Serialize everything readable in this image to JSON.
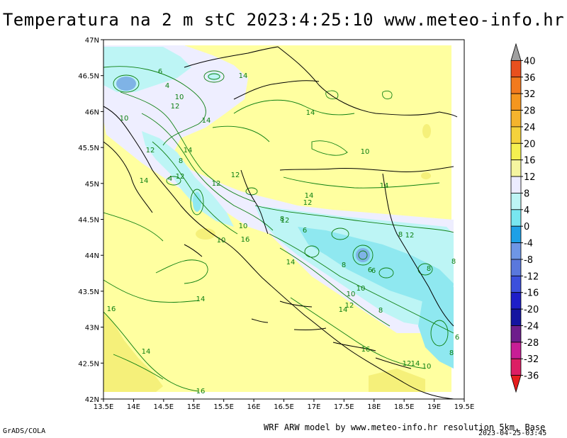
{
  "title": "Temperatura na 2 m stC 2023:4:25:10 www.meteo-info.hr",
  "map": {
    "lon_ticks": [
      "13.5E",
      "14E",
      "14.5E",
      "15E",
      "15.5E",
      "16E",
      "16.5E",
      "17E",
      "17.5E",
      "18E",
      "18.5E",
      "19E",
      "19.5E"
    ],
    "lat_ticks": [
      "47N",
      "46.5N",
      "46N",
      "45.5N",
      "45N",
      "44.5N",
      "44N",
      "43.5N",
      "43N",
      "42.5N",
      "42N"
    ],
    "lon_range": [
      13.5,
      19.5
    ],
    "lat_range": [
      42,
      47
    ],
    "contour_labels": [
      "14",
      "6",
      "4",
      "10",
      "12",
      "14",
      "10",
      "12",
      "14",
      "12",
      "12",
      "14",
      "4",
      "12",
      "14",
      "10",
      "14",
      "12",
      "14",
      "8",
      "10",
      "12",
      "6",
      "8",
      "10",
      "16",
      "14",
      "8",
      "6",
      "10",
      "12",
      "8",
      "8",
      "6",
      "8",
      "10",
      "12",
      "14",
      "8",
      "16",
      "14",
      "16",
      "16",
      "12",
      "14",
      "10",
      "6",
      "8",
      "14"
    ],
    "colors": {
      "land_yellow": "#ffffa0",
      "cool_white": "#eeeeff",
      "light_cyan": "#bff5f5",
      "cyan": "#8fe8f0",
      "blue": "#7fb3e6",
      "warm_yellow": "#f5f07a",
      "contour_green": "#0c7f10",
      "border_black": "#000000"
    }
  },
  "colorbar": {
    "labels": [
      "40",
      "36",
      "32",
      "28",
      "24",
      "20",
      "16",
      "12",
      "8",
      "4",
      "0",
      "-4",
      "-8",
      "-12",
      "-16",
      "-20",
      "-24",
      "-28",
      "-32",
      "-36"
    ],
    "colors": [
      "#a0a0a0",
      "#e8501e",
      "#f27a1e",
      "#f5961e",
      "#f5b42d",
      "#f5d23c",
      "#f5f050",
      "#f5f5a0",
      "#ececff",
      "#bdf5f5",
      "#78e6f0",
      "#1ea0e6",
      "#6e96e6",
      "#5a78dc",
      "#3c50dc",
      "#1e1ec8",
      "#1414a0",
      "#6e1e8c",
      "#c81e96",
      "#dc1e64",
      "#e61e1e"
    ]
  },
  "footer": {
    "left": "GrADS/COLA",
    "right": "WRF ARW model by www.meteo-info.hr resolution 5km, Base",
    "date": "2023-04-25-03:45"
  }
}
